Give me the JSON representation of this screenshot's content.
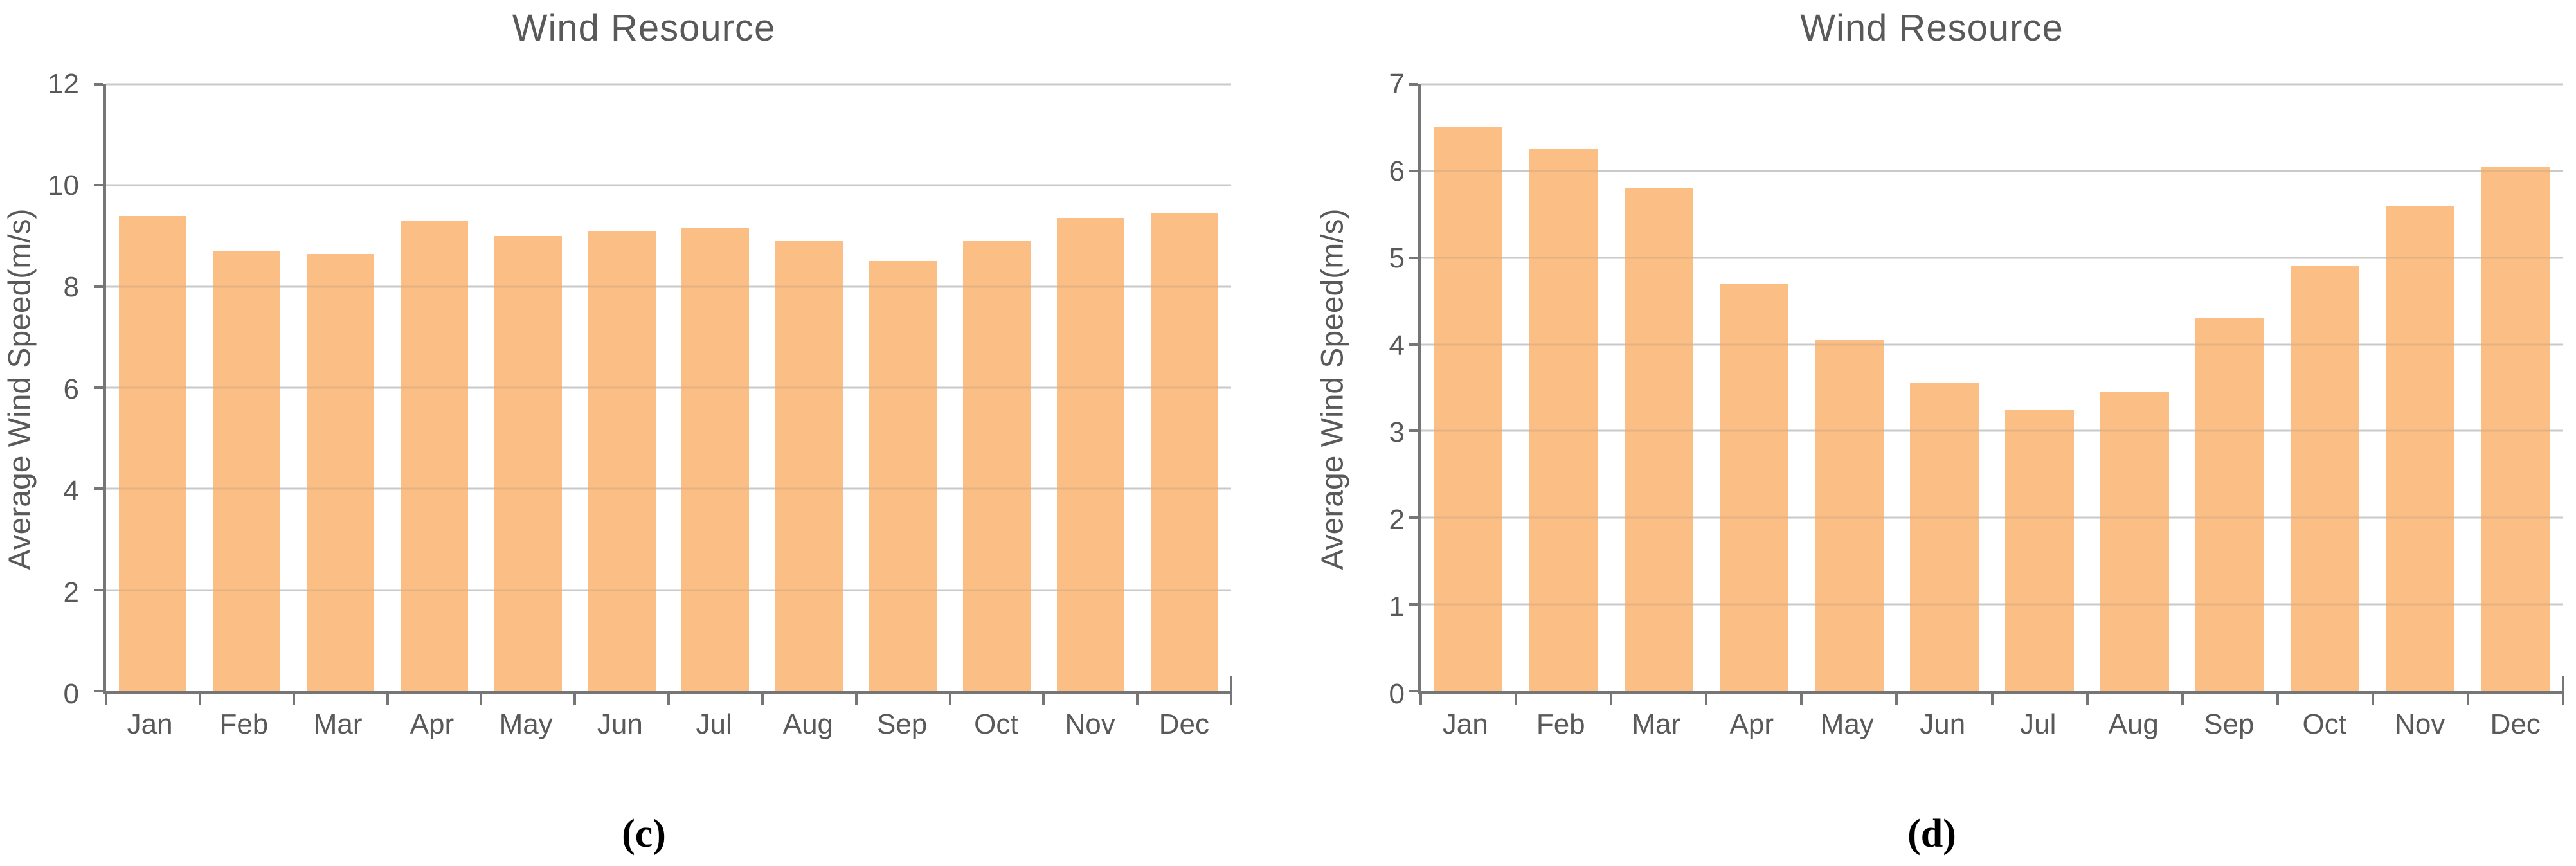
{
  "colors": {
    "bar": "#FBBE85",
    "gridline": "#D9D9D9",
    "axis": "#767676",
    "text": "#595959",
    "caption": "#000000"
  },
  "chart_data": [
    {
      "type": "bar",
      "title": "Wind Resource",
      "caption": "(c)",
      "xlabel": "",
      "ylabel": "Average Wind Speed(m/s)",
      "categories": [
        "Jan",
        "Feb",
        "Mar",
        "Apr",
        "May",
        "Jun",
        "Jul",
        "Aug",
        "Sep",
        "Oct",
        "Nov",
        "Dec"
      ],
      "values": [
        9.4,
        8.7,
        8.65,
        9.3,
        9.0,
        9.1,
        9.15,
        8.9,
        8.5,
        8.9,
        9.35,
        9.45
      ],
      "ylim": [
        0,
        12
      ],
      "yticks": [
        0,
        2,
        4,
        6,
        8,
        10,
        12
      ],
      "grid": true,
      "legend": "none",
      "bar_color": "#FBBE85"
    },
    {
      "type": "bar",
      "title": "Wind Resource",
      "caption": "(d)",
      "xlabel": "",
      "ylabel": "Average Wind Speed(m/s)",
      "categories": [
        "Jan",
        "Feb",
        "Mar",
        "Apr",
        "May",
        "Jun",
        "Jul",
        "Aug",
        "Sep",
        "Oct",
        "Nov",
        "Dec"
      ],
      "values": [
        6.5,
        6.25,
        5.8,
        4.7,
        4.05,
        3.55,
        3.25,
        3.45,
        4.3,
        4.9,
        5.6,
        6.05
      ],
      "ylim": [
        0,
        7
      ],
      "yticks": [
        0,
        1,
        2,
        3,
        4,
        5,
        6,
        7
      ],
      "grid": true,
      "legend": "none",
      "bar_color": "#FBBE85"
    }
  ]
}
